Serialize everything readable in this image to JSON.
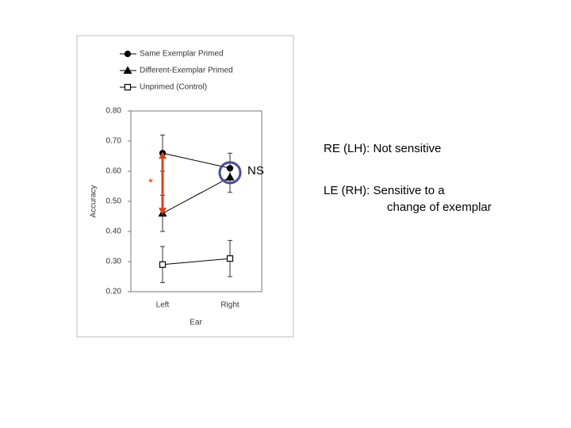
{
  "chart_data": {
    "type": "line",
    "x_label": "Ear",
    "y_label": "Accuracy",
    "categories": [
      "Left",
      "Right"
    ],
    "series": [
      {
        "name": "Same Exemplar Primed",
        "color": "#000000",
        "marker": "circle",
        "values": [
          0.66,
          0.61
        ],
        "errors": [
          0.06,
          0.05
        ]
      },
      {
        "name": "Different-Exemplar Primed",
        "color": "#000000",
        "marker": "triangle",
        "values": [
          0.46,
          0.58
        ],
        "errors": [
          0.06,
          0.05
        ]
      },
      {
        "name": "Unprimed (Control)",
        "color": "#000000",
        "marker": "square-open",
        "values": [
          0.29,
          0.31
        ],
        "errors": [
          0.06,
          0.06
        ]
      }
    ],
    "ylim": [
      0.2,
      0.8
    ],
    "yticks": [
      {
        "value": 0.2,
        "label": "0.20"
      },
      {
        "value": 0.3,
        "label": "0.30"
      },
      {
        "value": 0.4,
        "label": "0.40"
      },
      {
        "value": 0.5,
        "label": "0.50"
      },
      {
        "value": 0.6,
        "label": "0.60"
      },
      {
        "value": 0.7,
        "label": "0.70"
      },
      {
        "value": 0.8,
        "label": "0.80"
      }
    ],
    "legend": "top-left",
    "annotations": [
      "*",
      "NS",
      "RE (LH):  Not sensitive",
      "LE (RH):  Sensitive to a",
      "change of exemplar"
    ]
  }
}
